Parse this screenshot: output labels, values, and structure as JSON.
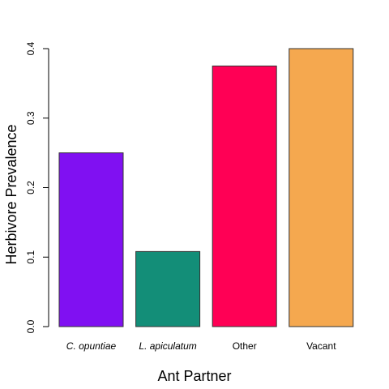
{
  "chart_data": {
    "type": "bar",
    "title": "",
    "xlabel": "Ant Partner",
    "ylabel": "Herbivore Prevalence",
    "categories": [
      "C. opuntiae",
      "L. apiculatum",
      "Other",
      "Vacant"
    ],
    "category_italic": [
      true,
      true,
      false,
      false
    ],
    "values": [
      0.25,
      0.108,
      0.375,
      0.4
    ],
    "colors": [
      "#8010F2",
      "#138E78",
      "#FF0055",
      "#F5A84F"
    ],
    "ylim": [
      0,
      0.4
    ],
    "yticks": [
      0.0,
      0.1,
      0.2,
      0.3,
      0.4
    ],
    "ytick_labels": [
      "0.0",
      "0.1",
      "0.2",
      "0.3",
      "0.4"
    ],
    "grid": false,
    "legend": "none"
  }
}
